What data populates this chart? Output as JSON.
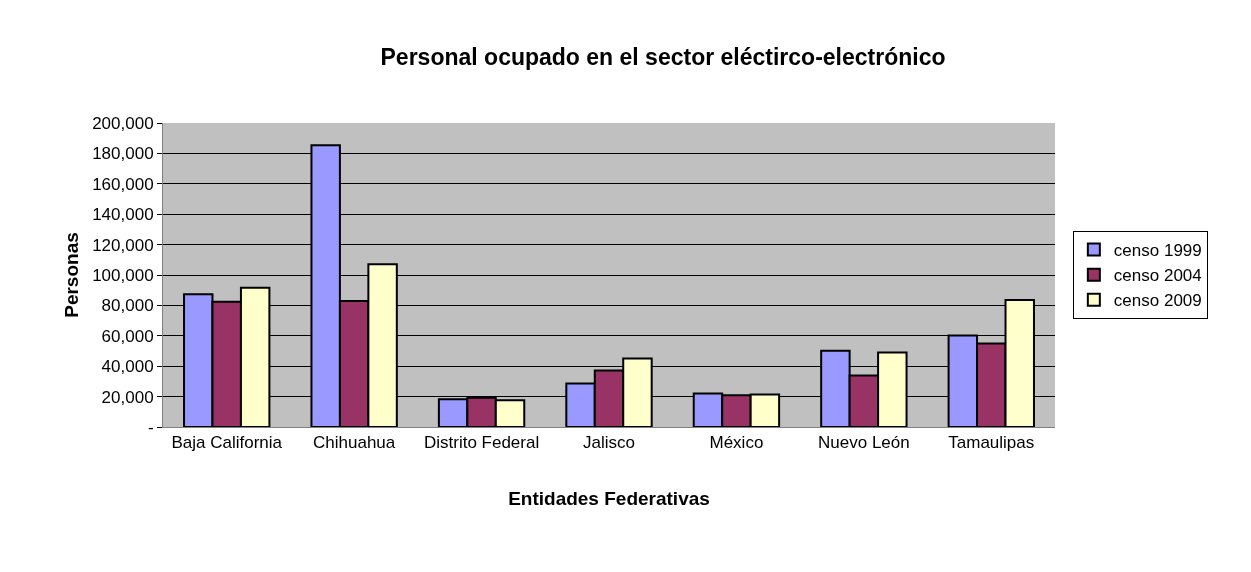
{
  "chart_data": {
    "type": "bar",
    "title": "Personal ocupado en el sector eléctirco-electrónico",
    "xlabel": "Entidades Federativas",
    "ylabel": "Personas",
    "categories": [
      "Baja California",
      "Chihuahua",
      "Distrito Federal",
      "Jalisco",
      "México",
      "Nuevo León",
      "Tamaulipas"
    ],
    "series": [
      {
        "name": "censo 1999",
        "color": "#9999ff",
        "values": [
          87300,
          185300,
          18200,
          28600,
          22000,
          50100,
          60200
        ]
      },
      {
        "name": "censo 2004",
        "color": "#993366",
        "values": [
          82400,
          82900,
          19300,
          37100,
          20900,
          33800,
          54900
        ]
      },
      {
        "name": "censo 2009",
        "color": "#ffffcc",
        "values": [
          91600,
          107000,
          17600,
          45100,
          21300,
          49000,
          83500
        ]
      }
    ],
    "ylim": [
      0,
      200000
    ],
    "yticks": [
      {
        "value": 0,
        "label": "-"
      },
      {
        "value": 20000,
        "label": "20,000"
      },
      {
        "value": 40000,
        "label": "40,000"
      },
      {
        "value": 60000,
        "label": "60,000"
      },
      {
        "value": 80000,
        "label": "80,000"
      },
      {
        "value": 100000,
        "label": "100,000"
      },
      {
        "value": 120000,
        "label": "120,000"
      },
      {
        "value": 140000,
        "label": "140,000"
      },
      {
        "value": 160000,
        "label": "160,000"
      },
      {
        "value": 180000,
        "label": "180,000"
      },
      {
        "value": 200000,
        "label": "200,000"
      }
    ],
    "grid": "y",
    "legend": "right"
  }
}
